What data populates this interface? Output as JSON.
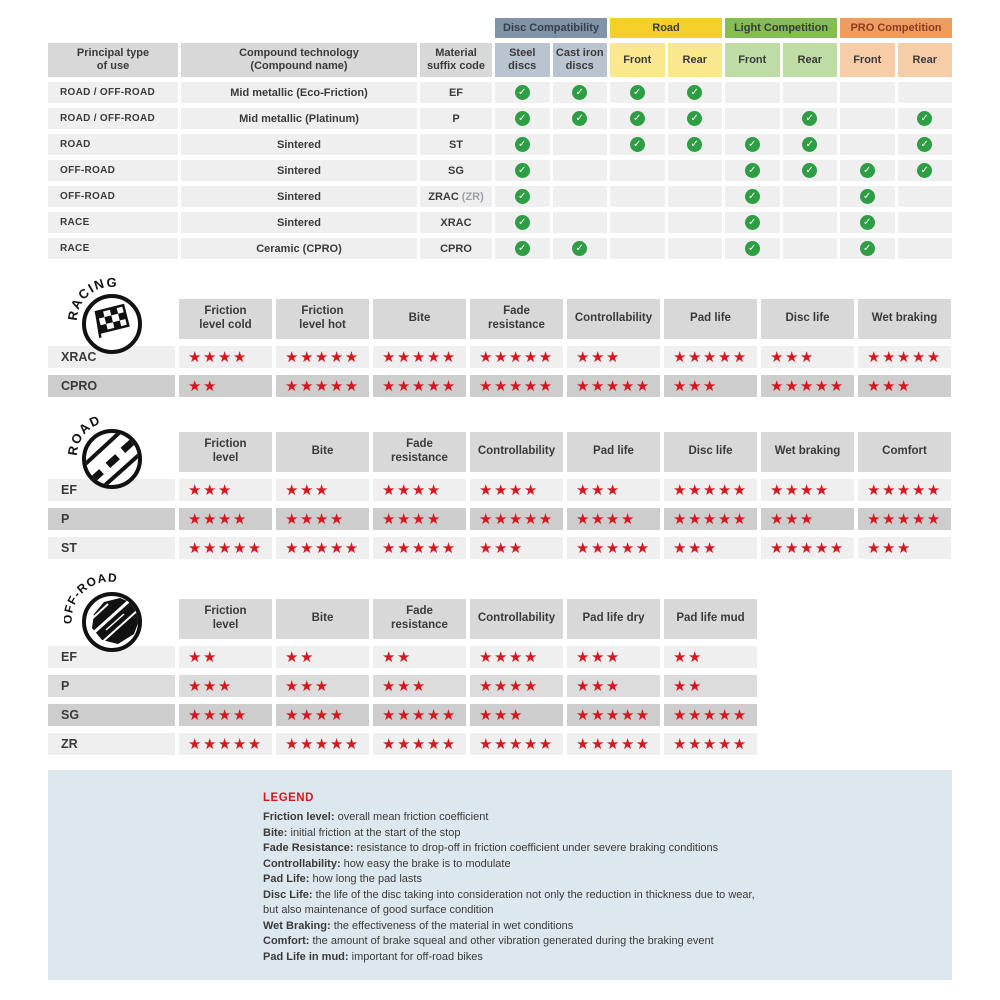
{
  "colors": {
    "star_red": "#d8161f",
    "check_green": "#2e9e44",
    "header_gray": "#d8d8d8",
    "row_light": "#efefef",
    "row_mid": "#dcdcdc",
    "row_dark": "#cdcdcd",
    "legend_bg": "#dde8ee",
    "disc_group": "#8193a7",
    "disc_sub": "#bac4d0",
    "road_group": "#f4d02a",
    "road_sub": "#f9e88e",
    "light_group": "#84bd52",
    "light_sub": "#bedca4",
    "pro_group": "#ef9d5f",
    "pro_sub": "#f6cda6"
  },
  "compat": {
    "col_headers": [
      [
        "Principal type",
        "of use"
      ],
      [
        "Compound technology",
        "(Compound name)"
      ],
      [
        "Material",
        "suffix code"
      ]
    ],
    "groups": [
      {
        "label": "Disc Compatibility",
        "color": "#8193a7",
        "sub_color": "#bac4d0",
        "text_color": "#333f4c",
        "subs": [
          [
            "Steel",
            "discs"
          ],
          [
            "Cast iron",
            "discs"
          ]
        ]
      },
      {
        "label": "Road",
        "color": "#f4d02a",
        "sub_color": "#f9e88e",
        "text_color": "#3a3a3a",
        "subs": [
          [
            "Front"
          ],
          [
            "Rear"
          ]
        ]
      },
      {
        "label": "Light Competition",
        "color": "#84bd52",
        "sub_color": "#bedca4",
        "text_color": "#3a3a3a",
        "subs": [
          [
            "Front"
          ],
          [
            "Rear"
          ]
        ]
      },
      {
        "label": "PRO Competition",
        "color": "#ef9d5f",
        "sub_color": "#f6cda6",
        "text_color": "#8d3b26",
        "subs": [
          [
            "Front"
          ],
          [
            "Rear"
          ]
        ]
      }
    ],
    "rows": [
      {
        "use": "ROAD / OFF-ROAD",
        "tech": "Mid metallic (Eco-Friction)",
        "suffix": "EF",
        "note": "",
        "checks": [
          1,
          1,
          1,
          1,
          0,
          0,
          0,
          0
        ]
      },
      {
        "use": "ROAD / OFF-ROAD",
        "tech": "Mid metallic (Platinum)",
        "suffix": "P",
        "note": "",
        "checks": [
          1,
          1,
          1,
          1,
          0,
          1,
          0,
          1
        ]
      },
      {
        "use": "ROAD",
        "tech": "Sintered",
        "suffix": "ST",
        "note": "",
        "checks": [
          1,
          0,
          1,
          1,
          1,
          1,
          0,
          1
        ]
      },
      {
        "use": "OFF-ROAD",
        "tech": "Sintered",
        "suffix": "SG",
        "note": "",
        "checks": [
          1,
          0,
          0,
          0,
          1,
          1,
          1,
          1
        ]
      },
      {
        "use": "OFF-ROAD",
        "tech": "Sintered",
        "suffix": "ZRAC",
        "note": "(ZR)",
        "checks": [
          1,
          0,
          0,
          0,
          1,
          0,
          1,
          0
        ]
      },
      {
        "use": "RACE",
        "tech": "Sintered",
        "suffix": "XRAC",
        "note": "",
        "checks": [
          1,
          0,
          0,
          0,
          1,
          0,
          1,
          0
        ]
      },
      {
        "use": "RACE",
        "tech": "Ceramic (CPRO)",
        "suffix": "CPRO",
        "note": "",
        "checks": [
          1,
          1,
          0,
          0,
          1,
          0,
          1,
          0
        ]
      }
    ]
  },
  "sections": [
    {
      "name": "racing",
      "icon_label": "RACING",
      "columns": [
        [
          "Friction",
          "level cold"
        ],
        [
          "Friction",
          "level hot"
        ],
        [
          "Bite"
        ],
        [
          "Fade",
          "resistance"
        ],
        [
          "Controllability"
        ],
        [
          "Pad life"
        ],
        [
          "Disc life"
        ],
        [
          "Wet braking"
        ]
      ],
      "rows": [
        {
          "label": "XRAC",
          "shade": "light",
          "stars": [
            4,
            5,
            5,
            5,
            3,
            5,
            3,
            5
          ]
        },
        {
          "label": "CPRO",
          "shade": "dark",
          "stars": [
            2,
            5,
            5,
            5,
            5,
            3,
            5,
            3
          ]
        }
      ]
    },
    {
      "name": "road",
      "icon_label": "ROAD",
      "columns": [
        [
          "Friction",
          "level"
        ],
        [
          "Bite"
        ],
        [
          "Fade",
          "resistance"
        ],
        [
          "Controllability"
        ],
        [
          "Pad life"
        ],
        [
          "Disc life"
        ],
        [
          "Wet braking"
        ],
        [
          "Comfort"
        ]
      ],
      "rows": [
        {
          "label": "EF",
          "shade": "light",
          "stars": [
            3,
            3,
            4,
            4,
            3,
            5,
            4,
            5
          ]
        },
        {
          "label": "P",
          "shade": "dark",
          "stars": [
            4,
            4,
            4,
            5,
            4,
            5,
            3,
            5
          ]
        },
        {
          "label": "ST",
          "shade": "light",
          "stars": [
            5,
            5,
            5,
            3,
            5,
            3,
            5,
            3
          ]
        }
      ]
    },
    {
      "name": "offroad",
      "icon_label": "OFF-ROAD",
      "columns": [
        [
          "Friction",
          "level"
        ],
        [
          "Bite"
        ],
        [
          "Fade",
          "resistance"
        ],
        [
          "Controllability"
        ],
        [
          "Pad life dry"
        ],
        [
          "Pad life mud"
        ]
      ],
      "rows": [
        {
          "label": "EF",
          "shade": "light",
          "stars": [
            2,
            2,
            2,
            4,
            3,
            2
          ]
        },
        {
          "label": "P",
          "shade": "mid",
          "stars": [
            3,
            3,
            3,
            4,
            3,
            2
          ]
        },
        {
          "label": "SG",
          "shade": "dark",
          "stars": [
            4,
            4,
            5,
            3,
            5,
            5
          ]
        },
        {
          "label": "ZR",
          "shade": "light",
          "stars": [
            5,
            5,
            5,
            5,
            5,
            5
          ]
        }
      ]
    }
  ],
  "legend": {
    "title": "LEGEND",
    "lines": [
      {
        "term": "Friction level",
        "rest": "overall mean friction coefficient"
      },
      {
        "term": "Bite",
        "rest": "initial friction at the start of the stop"
      },
      {
        "term": "Fade Resistance",
        "rest": "resistance to drop-off in friction coefficient under severe braking conditions"
      },
      {
        "term": "Controllability",
        "rest": "how easy the brake is to modulate"
      },
      {
        "term": "Pad Life",
        "rest": "how long the pad lasts"
      },
      {
        "term": "Disc Life",
        "rest": "the life of the disc taking into consideration not only the reduction in thickness due to wear,"
      },
      {
        "term": "",
        "rest": "but also maintenance of good surface condition"
      },
      {
        "term": "Wet Braking",
        "rest": "the effectiveness of the material in wet conditions"
      },
      {
        "term": "Comfort",
        "rest": "the amount of brake squeal and other vibration generated during the braking event"
      },
      {
        "term": "Pad Life in mud",
        "rest": "important for off-road bikes"
      }
    ]
  },
  "chart_data": {
    "type": "table",
    "tables": [
      {
        "name": "compatibility_matrix",
        "columns": [
          "Principal type of use",
          "Compound technology (Compound name)",
          "Material suffix code",
          "Steel discs",
          "Cast iron discs",
          "Road Front",
          "Road Rear",
          "Light Competition Front",
          "Light Competition Rear",
          "PRO Competition Front",
          "PRO Competition Rear"
        ],
        "rows": [
          [
            "ROAD / OFF-ROAD",
            "Mid metallic (Eco-Friction)",
            "EF",
            1,
            1,
            1,
            1,
            0,
            0,
            0,
            0
          ],
          [
            "ROAD / OFF-ROAD",
            "Mid metallic (Platinum)",
            "P",
            1,
            1,
            1,
            1,
            0,
            1,
            0,
            1
          ],
          [
            "ROAD",
            "Sintered",
            "ST",
            1,
            0,
            1,
            1,
            1,
            1,
            0,
            1
          ],
          [
            "OFF-ROAD",
            "Sintered",
            "SG",
            1,
            0,
            0,
            0,
            1,
            1,
            1,
            1
          ],
          [
            "OFF-ROAD",
            "Sintered",
            "ZRAC (ZR)",
            1,
            0,
            0,
            0,
            1,
            0,
            1,
            0
          ],
          [
            "RACE",
            "Sintered",
            "XRAC",
            1,
            0,
            0,
            0,
            1,
            0,
            1,
            0
          ],
          [
            "RACE",
            "Ceramic (CPRO)",
            "CPRO",
            1,
            1,
            0,
            0,
            1,
            0,
            1,
            0
          ]
        ]
      },
      {
        "name": "racing_ratings_0_to_5_stars",
        "columns": [
          "Compound",
          "Friction level cold",
          "Friction level hot",
          "Bite",
          "Fade resistance",
          "Controllability",
          "Pad life",
          "Disc life",
          "Wet braking"
        ],
        "rows": [
          [
            "XRAC",
            4,
            5,
            5,
            5,
            3,
            5,
            3,
            5
          ],
          [
            "CPRO",
            2,
            5,
            5,
            5,
            5,
            3,
            5,
            3
          ]
        ]
      },
      {
        "name": "road_ratings_0_to_5_stars",
        "columns": [
          "Compound",
          "Friction level",
          "Bite",
          "Fade resistance",
          "Controllability",
          "Pad life",
          "Disc life",
          "Wet braking",
          "Comfort"
        ],
        "rows": [
          [
            "EF",
            3,
            3,
            4,
            4,
            3,
            5,
            4,
            5
          ],
          [
            "P",
            4,
            4,
            4,
            5,
            4,
            5,
            3,
            5
          ],
          [
            "ST",
            5,
            5,
            5,
            3,
            5,
            3,
            5,
            3
          ]
        ]
      },
      {
        "name": "offroad_ratings_0_to_5_stars",
        "columns": [
          "Compound",
          "Friction level",
          "Bite",
          "Fade resistance",
          "Controllability",
          "Pad life dry",
          "Pad life mud"
        ],
        "rows": [
          [
            "EF",
            2,
            2,
            2,
            4,
            3,
            2
          ],
          [
            "P",
            3,
            3,
            3,
            4,
            3,
            2
          ],
          [
            "SG",
            4,
            4,
            5,
            3,
            5,
            5
          ],
          [
            "ZR",
            5,
            5,
            5,
            5,
            5,
            5
          ]
        ]
      }
    ]
  }
}
